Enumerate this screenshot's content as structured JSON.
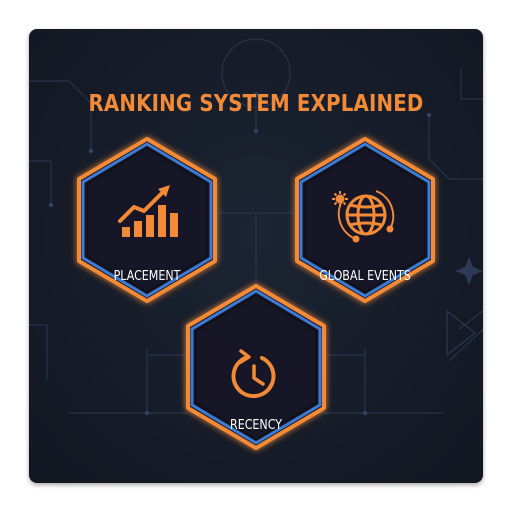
{
  "title": "RANKING SYSTEM EXPLAINED",
  "nodes": [
    {
      "label": "PLACEMENT",
      "icon": "bar-chart-up-arrow-icon"
    },
    {
      "label": "GLOBAL EVENTS",
      "icon": "globe-icon"
    },
    {
      "label": "RECENCY",
      "icon": "clock-refresh-icon"
    }
  ],
  "colors": {
    "accent_orange": "#f28a37",
    "accent_blue": "#3d7bd4",
    "background": "#161c28",
    "text": "#ffffff"
  }
}
